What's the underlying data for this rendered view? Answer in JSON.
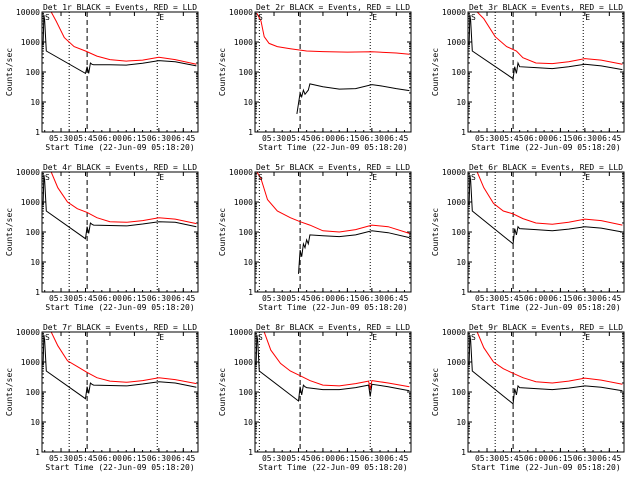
{
  "chart_data": [
    {
      "type": "line",
      "title": "Det 1r BLACK = Events, RED = LLD",
      "xlabel": "Start Time (22-Jun-09 05:18:20)",
      "ylabel": "Counts/sec",
      "marker_left": "S",
      "marker_right": "E",
      "ylim": [
        1,
        10000
      ],
      "yscale": "log",
      "xlim": [
        "05:18:20",
        "06:54"
      ],
      "xticks": [
        "05:30",
        "05:45",
        "06:00",
        "06:15",
        "06:30",
        "06:45"
      ],
      "yticks": [
        "1",
        "10",
        "100",
        "1000",
        "10000"
      ],
      "series": [
        {
          "color": "#ff0000",
          "x": [
            "05:19:30",
            "05:24",
            "05:27",
            "05:32",
            "05:38",
            "05:45",
            "05:52",
            "06:00",
            "06:10",
            "06:20",
            "06:30",
            "06:40",
            "06:53"
          ],
          "y": [
            10000,
            10000,
            5000,
            1400,
            700,
            500,
            340,
            260,
            230,
            250,
            310,
            260,
            180
          ]
        },
        {
          "color": "#000000",
          "x": [
            "05:19",
            "05:19:30",
            "05:20",
            "05:21",
            "05:45",
            "05:46",
            "05:47",
            "05:48",
            "05:49",
            "05:50",
            "06:00",
            "06:10",
            "06:20",
            "06:30",
            "06:40",
            "06:53"
          ],
          "y": [
            800,
            8000,
            5000,
            500,
            90,
            150,
            90,
            200,
            180,
            175,
            175,
            170,
            195,
            240,
            220,
            160
          ]
        }
      ],
      "vlines_dotted": [
        "05:35",
        "06:29"
      ],
      "vlines_dashed": [
        "05:46"
      ]
    },
    {
      "type": "line",
      "title": "Det 2r BLACK = Events, RED = LLD",
      "xlabel": "Start Time (22-Jun-09 05:18:20)",
      "ylabel": "Counts/sec",
      "marker_left": "S",
      "marker_right": "E",
      "ylim": [
        1,
        10000
      ],
      "yscale": "log",
      "xlim": [
        "05:18:20",
        "06:54"
      ],
      "xticks": [
        "05:30",
        "05:45",
        "06:00",
        "06:15",
        "06:30",
        "06:45"
      ],
      "yticks": [
        "1",
        "10",
        "100",
        "1000",
        "10000"
      ],
      "series": [
        {
          "color": "#ff0000",
          "x": [
            "05:19:30",
            "05:22",
            "05:24",
            "05:27",
            "05:32",
            "05:40",
            "05:50",
            "06:00",
            "06:15",
            "06:30",
            "06:45",
            "06:53"
          ],
          "y": [
            9000,
            5000,
            1500,
            900,
            700,
            600,
            500,
            480,
            460,
            470,
            430,
            390
          ]
        },
        {
          "color": "#000000",
          "x": [
            "05:44",
            "05:46",
            "05:47",
            "05:48",
            "05:49",
            "05:51",
            "05:52",
            "06:00",
            "06:10",
            "06:20",
            "06:30",
            "06:35",
            "06:45",
            "06:53"
          ],
          "y": [
            4,
            20,
            15,
            25,
            18,
            25,
            40,
            32,
            27,
            28,
            38,
            35,
            28,
            24
          ]
        }
      ],
      "vlines_dotted": [
        "05:21",
        "06:29"
      ],
      "vlines_dashed": [
        "05:46"
      ]
    },
    {
      "type": "line",
      "title": "Det 3r BLACK = Events, RED = LLD",
      "xlabel": "Start Time (22-Jun-09 05:18:20)",
      "ylabel": "Counts/sec",
      "marker_left": "S",
      "marker_right": "E",
      "ylim": [
        1,
        10000
      ],
      "yscale": "log",
      "xlim": [
        "05:18:20",
        "06:54"
      ],
      "xticks": [
        "05:30",
        "05:45",
        "06:00",
        "06:15",
        "06:30",
        "06:45"
      ],
      "yticks": [
        "1",
        "10",
        "100",
        "1000",
        "10000"
      ],
      "series": [
        {
          "color": "#ff0000",
          "x": [
            "05:19:30",
            "05:24",
            "05:28",
            "05:35",
            "05:42",
            "05:48",
            "05:52",
            "06:00",
            "06:10",
            "06:20",
            "06:30",
            "06:40",
            "06:53"
          ],
          "y": [
            10000,
            10000,
            6000,
            1500,
            700,
            500,
            300,
            200,
            190,
            220,
            280,
            250,
            180
          ]
        },
        {
          "color": "#000000",
          "x": [
            "05:19",
            "05:19:30",
            "05:20",
            "05:21",
            "05:46",
            "05:47",
            "05:48",
            "05:49",
            "05:50",
            "06:00",
            "06:10",
            "06:20",
            "06:30",
            "06:40",
            "06:53"
          ],
          "y": [
            800,
            8000,
            5000,
            500,
            60,
            150,
            90,
            200,
            150,
            140,
            130,
            150,
            180,
            160,
            120
          ]
        }
      ],
      "vlines_dotted": [
        "05:35",
        "06:29"
      ],
      "vlines_dashed": [
        "05:46"
      ]
    },
    {
      "type": "line",
      "title": "Det 4r BLACK = Events, RED = LLD",
      "xlabel": "Start Time (22-Jun-09 05:18:20)",
      "ylabel": "Counts/sec",
      "marker_left": "S",
      "marker_right": "E",
      "ylim": [
        1,
        10000
      ],
      "yscale": "log",
      "xlim": [
        "05:18:20",
        "06:54"
      ],
      "xticks": [
        "05:30",
        "05:45",
        "06:00",
        "06:15",
        "06:30",
        "06:45"
      ],
      "yticks": [
        "1",
        "10",
        "100",
        "1000",
        "10000"
      ],
      "series": [
        {
          "color": "#ff0000",
          "x": [
            "05:19:30",
            "05:24",
            "05:28",
            "05:34",
            "05:40",
            "05:46",
            "05:52",
            "06:00",
            "06:10",
            "06:20",
            "06:30",
            "06:40",
            "06:53"
          ],
          "y": [
            10000,
            10000,
            3000,
            1000,
            600,
            450,
            300,
            220,
            210,
            240,
            300,
            270,
            190
          ]
        },
        {
          "color": "#000000",
          "x": [
            "05:19",
            "05:19:30",
            "05:20",
            "05:21",
            "05:45",
            "05:46",
            "05:47",
            "05:48",
            "05:49",
            "05:50",
            "06:00",
            "06:10",
            "06:20",
            "06:30",
            "06:40",
            "06:53"
          ],
          "y": [
            800,
            8000,
            5000,
            500,
            60,
            150,
            90,
            200,
            180,
            170,
            165,
            160,
            185,
            220,
            210,
            150
          ]
        }
      ],
      "vlines_dotted": [
        "05:35",
        "06:29"
      ],
      "vlines_dashed": [
        "05:46"
      ]
    },
    {
      "type": "line",
      "title": "Det 5r BLACK = Events, RED = LLD",
      "xlabel": "Start Time (22-Jun-09 05:18:20)",
      "ylabel": "Counts/sec",
      "marker_left": "S",
      "marker_right": "E",
      "ylim": [
        1,
        10000
      ],
      "yscale": "log",
      "xlim": [
        "05:18:20",
        "06:54"
      ],
      "xticks": [
        "05:30",
        "05:45",
        "06:00",
        "06:15",
        "06:30",
        "06:45"
      ],
      "yticks": [
        "1",
        "10",
        "100",
        "1000",
        "10000"
      ],
      "series": [
        {
          "color": "#ff0000",
          "x": [
            "05:19:30",
            "05:22",
            "05:26",
            "05:32",
            "05:40",
            "05:46",
            "05:52",
            "06:00",
            "06:10",
            "06:20",
            "06:30",
            "06:40",
            "06:53"
          ],
          "y": [
            10000,
            6000,
            1200,
            500,
            300,
            220,
            170,
            110,
            100,
            120,
            170,
            150,
            90
          ]
        },
        {
          "color": "#000000",
          "x": [
            "05:45",
            "05:46",
            "05:47",
            "05:48",
            "05:49",
            "05:50",
            "05:51",
            "05:52",
            "06:00",
            "06:10",
            "06:20",
            "06:30",
            "06:40",
            "06:53"
          ],
          "y": [
            4,
            25,
            15,
            40,
            30,
            55,
            40,
            80,
            75,
            70,
            80,
            110,
            95,
            65
          ]
        }
      ],
      "vlines_dotted": [
        "05:21",
        "06:29"
      ],
      "vlines_dashed": [
        "05:46"
      ]
    },
    {
      "type": "line",
      "title": "Det 6r BLACK = Events, RED = LLD",
      "xlabel": "Start Time (22-Jun-09 05:18:20)",
      "ylabel": "Counts/sec",
      "marker_left": "S",
      "marker_right": "E",
      "ylim": [
        1,
        10000
      ],
      "yscale": "log",
      "xlim": [
        "05:18:20",
        "06:54"
      ],
      "xticks": [
        "05:30",
        "05:45",
        "06:00",
        "06:15",
        "06:30",
        "06:45"
      ],
      "yticks": [
        "1",
        "10",
        "100",
        "1000",
        "10000"
      ],
      "series": [
        {
          "color": "#ff0000",
          "x": [
            "05:19:30",
            "05:24",
            "05:28",
            "05:34",
            "05:40",
            "05:46",
            "05:52",
            "06:00",
            "06:10",
            "06:20",
            "06:30",
            "06:40",
            "06:53"
          ],
          "y": [
            10000,
            10000,
            3000,
            900,
            500,
            400,
            280,
            200,
            180,
            210,
            270,
            240,
            170
          ]
        },
        {
          "color": "#000000",
          "x": [
            "05:19",
            "05:19:30",
            "05:20",
            "05:21",
            "05:46",
            "05:47",
            "05:48",
            "05:49",
            "05:50",
            "06:00",
            "06:10",
            "06:20",
            "06:30",
            "06:40",
            "06:53"
          ],
          "y": [
            800,
            8000,
            5000,
            500,
            40,
            130,
            80,
            150,
            130,
            120,
            110,
            125,
            150,
            135,
            100
          ]
        }
      ],
      "vlines_dotted": [
        "05:35",
        "06:29"
      ],
      "vlines_dashed": [
        "05:46"
      ]
    },
    {
      "type": "line",
      "title": "Det 7r BLACK = Events, RED = LLD",
      "xlabel": "Start Time (22-Jun-09 05:18:20)",
      "ylabel": "Counts/sec",
      "marker_left": "S",
      "marker_right": "E",
      "ylim": [
        1,
        10000
      ],
      "yscale": "log",
      "xlim": [
        "05:18:20",
        "06:54"
      ],
      "xticks": [
        "05:30",
        "05:45",
        "06:00",
        "06:15",
        "06:30",
        "06:45"
      ],
      "yticks": [
        "1",
        "10",
        "100",
        "1000",
        "10000"
      ],
      "series": [
        {
          "color": "#ff0000",
          "x": [
            "05:19:30",
            "05:24",
            "05:28",
            "05:34",
            "05:40",
            "05:46",
            "05:52",
            "06:00",
            "06:10",
            "06:20",
            "06:30",
            "06:40",
            "06:53"
          ],
          "y": [
            10000,
            10000,
            3500,
            1100,
            700,
            450,
            300,
            230,
            210,
            240,
            300,
            260,
            190
          ]
        },
        {
          "color": "#000000",
          "x": [
            "05:19",
            "05:19:30",
            "05:20",
            "05:21",
            "05:45",
            "05:46",
            "05:47",
            "05:48",
            "05:49",
            "05:50",
            "06:00",
            "06:10",
            "06:20",
            "06:30",
            "06:40",
            "06:53"
          ],
          "y": [
            800,
            8000,
            5000,
            500,
            60,
            150,
            90,
            200,
            180,
            170,
            165,
            160,
            185,
            220,
            200,
            145
          ]
        }
      ],
      "vlines_dotted": [
        "05:35",
        "06:29"
      ],
      "vlines_dashed": [
        "05:46"
      ]
    },
    {
      "type": "line",
      "title": "Det 8r BLACK = Events, RED = LLD",
      "xlabel": "Start Time (22-Jun-09 05:18:20)",
      "ylabel": "Counts/sec",
      "marker_left": "S",
      "marker_right": "E",
      "ylim": [
        1,
        10000
      ],
      "yscale": "log",
      "xlim": [
        "05:18:20",
        "06:54"
      ],
      "xticks": [
        "05:30",
        "05:45",
        "06:00",
        "06:15",
        "06:30",
        "06:45"
      ],
      "yticks": [
        "1",
        "10",
        "100",
        "1000",
        "10000"
      ],
      "series": [
        {
          "color": "#ff0000",
          "x": [
            "05:19:30",
            "05:24",
            "05:28",
            "05:34",
            "05:40",
            "05:46",
            "05:52",
            "06:00",
            "06:10",
            "06:20",
            "06:28",
            "06:29",
            "06:30",
            "06:40",
            "06:53"
          ],
          "y": [
            10000,
            10000,
            2500,
            900,
            500,
            350,
            240,
            170,
            160,
            190,
            230,
            120,
            240,
            200,
            150
          ]
        },
        {
          "color": "#000000",
          "x": [
            "05:19",
            "05:19:30",
            "05:20",
            "05:21",
            "05:45",
            "05:46",
            "05:47",
            "05:48",
            "05:49",
            "05:50",
            "06:00",
            "06:10",
            "06:20",
            "06:28",
            "06:29",
            "06:30",
            "06:40",
            "06:53"
          ],
          "y": [
            800,
            8000,
            5000,
            500,
            50,
            150,
            80,
            170,
            150,
            140,
            120,
            120,
            140,
            170,
            70,
            180,
            150,
            110
          ]
        }
      ],
      "vlines_dotted": [
        "05:21",
        "06:29"
      ],
      "vlines_dashed": [
        "05:46"
      ]
    },
    {
      "type": "line",
      "title": "Det 9r BLACK = Events, RED = LLD",
      "xlabel": "Start Time (22-Jun-09 05:18:20)",
      "ylabel": "Counts/sec",
      "marker_left": "S",
      "marker_right": "E",
      "ylim": [
        1,
        10000
      ],
      "yscale": "log",
      "xlim": [
        "05:18:20",
        "06:54"
      ],
      "xticks": [
        "05:30",
        "05:45",
        "06:00",
        "06:15",
        "06:30",
        "06:45"
      ],
      "yticks": [
        "1",
        "10",
        "100",
        "1000",
        "10000"
      ],
      "series": [
        {
          "color": "#ff0000",
          "x": [
            "05:19:30",
            "05:24",
            "05:28",
            "05:34",
            "05:40",
            "05:46",
            "05:52",
            "06:00",
            "06:10",
            "06:20",
            "06:30",
            "06:40",
            "06:53"
          ],
          "y": [
            10000,
            10000,
            3000,
            1000,
            600,
            420,
            300,
            220,
            200,
            230,
            290,
            250,
            180
          ]
        },
        {
          "color": "#000000",
          "x": [
            "05:19",
            "05:19:30",
            "05:20",
            "05:21",
            "05:46",
            "05:47",
            "05:48",
            "05:49",
            "05:50",
            "06:00",
            "06:10",
            "06:20",
            "06:30",
            "06:40",
            "06:53"
          ],
          "y": [
            800,
            8000,
            5000,
            500,
            40,
            130,
            80,
            160,
            140,
            130,
            120,
            135,
            160,
            145,
            110
          ]
        }
      ],
      "vlines_dotted": [
        "05:35",
        "06:29"
      ],
      "vlines_dashed": [
        "05:46"
      ]
    }
  ]
}
